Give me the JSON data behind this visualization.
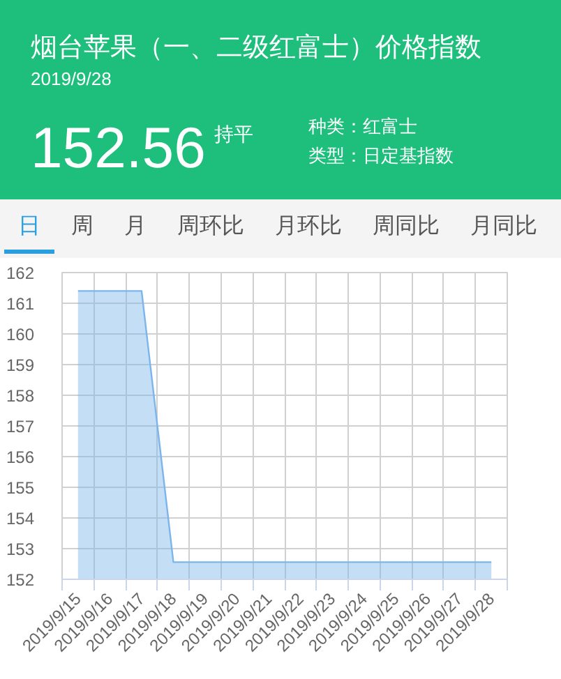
{
  "chart_data": {
    "type": "area",
    "title": "烟台苹果（一、二级红富士）价格指数",
    "subtitle": "2019/9/28",
    "annotations": [
      "152.56",
      "持平",
      "种类：红富士",
      "类型：日定基指数",
      "日",
      "周",
      "月",
      "周环比",
      "月环比",
      "周同比",
      "月同比"
    ],
    "categories": [
      "2019/9/15",
      "2019/9/16",
      "2019/9/17",
      "2019/9/18",
      "2019/9/19",
      "2019/9/20",
      "2019/9/21",
      "2019/9/22",
      "2019/9/23",
      "2019/9/24",
      "2019/9/25",
      "2019/9/26",
      "2019/9/27",
      "2019/9/28"
    ],
    "values": [
      161.4,
      161.4,
      161.4,
      152.56,
      152.56,
      152.56,
      152.56,
      152.56,
      152.56,
      152.56,
      152.56,
      152.56,
      152.56,
      152.56
    ],
    "color": "#7cb5ec",
    "ylim": [
      152,
      162
    ],
    "yticks": [
      152,
      153,
      154,
      155,
      156,
      157,
      158,
      159,
      160,
      161,
      162
    ],
    "grid": true
  }
}
